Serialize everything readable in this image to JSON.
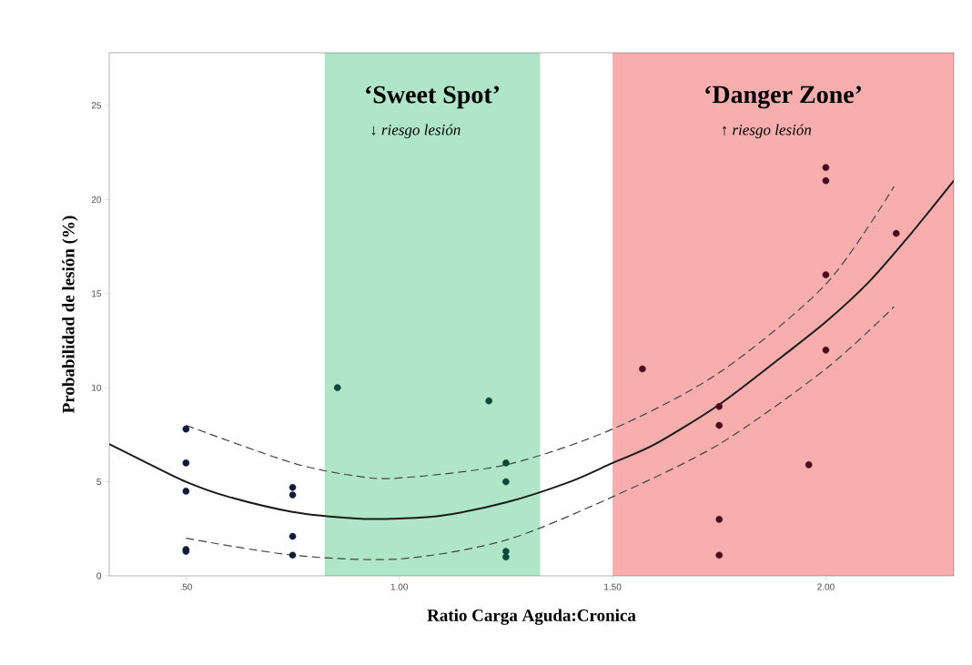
{
  "chart_data": {
    "type": "scatter",
    "xlabel": "Ratio Carga Aguda:Cronica",
    "ylabel": "Probabilidad  de lesión (%)",
    "xlim": [
      0.32,
      2.3
    ],
    "ylim": [
      0,
      27.8
    ],
    "xticks": [
      {
        "value": 0.5,
        "label": ".50"
      },
      {
        "value": 1.0,
        "label": "1.00"
      },
      {
        "value": 1.5,
        "label": "1.50"
      },
      {
        "value": 2.0,
        "label": "2.00"
      }
    ],
    "yticks": [
      0,
      5,
      10,
      15,
      20,
      25
    ],
    "bands": [
      {
        "axis": "x",
        "from": 0.825,
        "to": 1.33,
        "label": "‘Sweet Spot’",
        "color": "#b0e6c8"
      },
      {
        "axis": "x",
        "from": 1.5,
        "to": 2.3,
        "label": "‘Danger Zone’",
        "color": "#f9aeae"
      }
    ],
    "annotations": [
      "↓  riesgo lesión",
      "↑  riesgo lesión"
    ],
    "series": [
      {
        "marker": "circle",
        "color": "#0d1a3a",
        "x": [
          0.5,
          0.5,
          0.5,
          0.5,
          0.5,
          0.75,
          0.75,
          0.75,
          0.75
        ],
        "values": [
          7.8,
          6.0,
          4.5,
          1.4,
          1.3,
          4.7,
          4.3,
          2.1,
          1.1
        ]
      },
      {
        "marker": "circle",
        "color": "#0b4a3a",
        "x": [
          0.855,
          1.21,
          1.25,
          1.25,
          1.25,
          1.25
        ],
        "values": [
          10.0,
          9.3,
          6.0,
          5.0,
          1.3,
          1.0
        ]
      },
      {
        "marker": "circle",
        "color": "#4a0a1e",
        "x": [
          1.57,
          1.75,
          1.75,
          1.75,
          1.75,
          1.96,
          2.0,
          2.0,
          2.0,
          2.0,
          2.165
        ],
        "values": [
          11.0,
          9.0,
          8.0,
          3.0,
          1.1,
          5.9,
          21.7,
          21.0,
          16.0,
          12.0,
          18.2
        ]
      },
      {
        "type": "line",
        "marker": "none",
        "line_style": "solid",
        "color": "#1a1a1a",
        "x": [
          0.32,
          0.4,
          0.5,
          0.6,
          0.75,
          0.9,
          1.0,
          1.1,
          1.25,
          1.4,
          1.5,
          1.6,
          1.75,
          1.9,
          2.0,
          2.1,
          2.2,
          2.3
        ],
        "values": [
          7.0,
          6.1,
          5.0,
          4.2,
          3.4,
          3.05,
          3.05,
          3.2,
          3.9,
          5.0,
          6.0,
          7.0,
          9.1,
          11.7,
          13.5,
          15.6,
          18.2,
          21.0
        ]
      },
      {
        "type": "line",
        "marker": "none",
        "line_style": "dashed",
        "color": "#444444",
        "x": [
          0.5,
          0.75,
          0.9,
          1.0,
          1.25,
          1.5,
          1.75,
          2.0,
          2.16
        ],
        "values": [
          8.0,
          6.0,
          5.3,
          5.2,
          5.9,
          7.8,
          10.8,
          15.5,
          20.7
        ]
      },
      {
        "type": "line",
        "marker": "none",
        "line_style": "dashed",
        "color": "#444444",
        "x": [
          0.5,
          0.75,
          1.0,
          1.25,
          1.5,
          1.75,
          2.0,
          2.16
        ],
        "values": [
          2.0,
          1.1,
          0.9,
          1.9,
          4.2,
          7.0,
          11.0,
          14.3
        ]
      }
    ]
  }
}
